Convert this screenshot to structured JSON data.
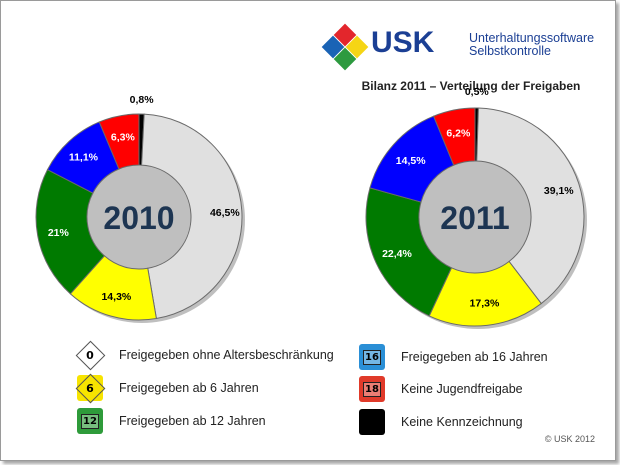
{
  "logo": {
    "brand": "USK",
    "line1": "Unterhaltungssoftware",
    "line2": "Selbstkontrolle",
    "colors": [
      "#e3262c",
      "#f5d515",
      "#2d9a3f",
      "#1a63b5"
    ]
  },
  "subtitle": "Bilanz 2011 – Verteilung der Freigaben",
  "chart_data": [
    {
      "type": "pie",
      "title": "2010",
      "categories": [
        "Keine Kennzeichnung",
        "Freigegeben ohne Altersbeschränkung",
        "Freigegeben ab 6 Jahren",
        "Freigegeben ab 12 Jahren",
        "Freigegeben ab 16 Jahren",
        "Keine Jugendfreigabe"
      ],
      "values": [
        0.8,
        46.5,
        14.3,
        21,
        11.1,
        6.3
      ],
      "labels": [
        "0,8%",
        "46,5%",
        "14,3%",
        "21%",
        "11,1%",
        "6,3%"
      ]
    },
    {
      "type": "pie",
      "title": "2011",
      "categories": [
        "Keine Kennzeichnung",
        "Freigegeben ohne Altersbeschränkung",
        "Freigegeben ab 6 Jahren",
        "Freigegeben ab 12 Jahren",
        "Freigegeben ab 16 Jahren",
        "Keine Jugendfreigabe"
      ],
      "values": [
        0.5,
        39.1,
        17.3,
        22.4,
        14.5,
        6.2
      ],
      "labels": [
        "0,5%",
        "39,1%",
        "17,3%",
        "22,4%",
        "14,5%",
        "6,2%"
      ]
    }
  ],
  "colors": [
    "#000000",
    "#e0e0e0",
    "#ffff00",
    "#007a00",
    "#0000ff",
    "#ff0000"
  ],
  "legend": [
    {
      "label": "Freigegeben ohne Altersbeschränkung",
      "badge": "0",
      "color": "#ffffff"
    },
    {
      "label": "Freigegeben ab 6 Jahren",
      "badge": "6",
      "color": "#f7e400"
    },
    {
      "label": "Freigegeben ab 12 Jahren",
      "badge": "12",
      "color": "#2e9b3a"
    },
    {
      "label": "Freigegeben ab 16 Jahren",
      "badge": "16",
      "color": "#2a8fd6"
    },
    {
      "label": "Keine Jugendfreigabe",
      "badge": "18",
      "color": "#e03a2a"
    },
    {
      "label": "Keine Kennzeichnung",
      "badge": "",
      "color": "#000000"
    }
  ],
  "badge_caption": "USK",
  "copyright": "© USK 2012"
}
